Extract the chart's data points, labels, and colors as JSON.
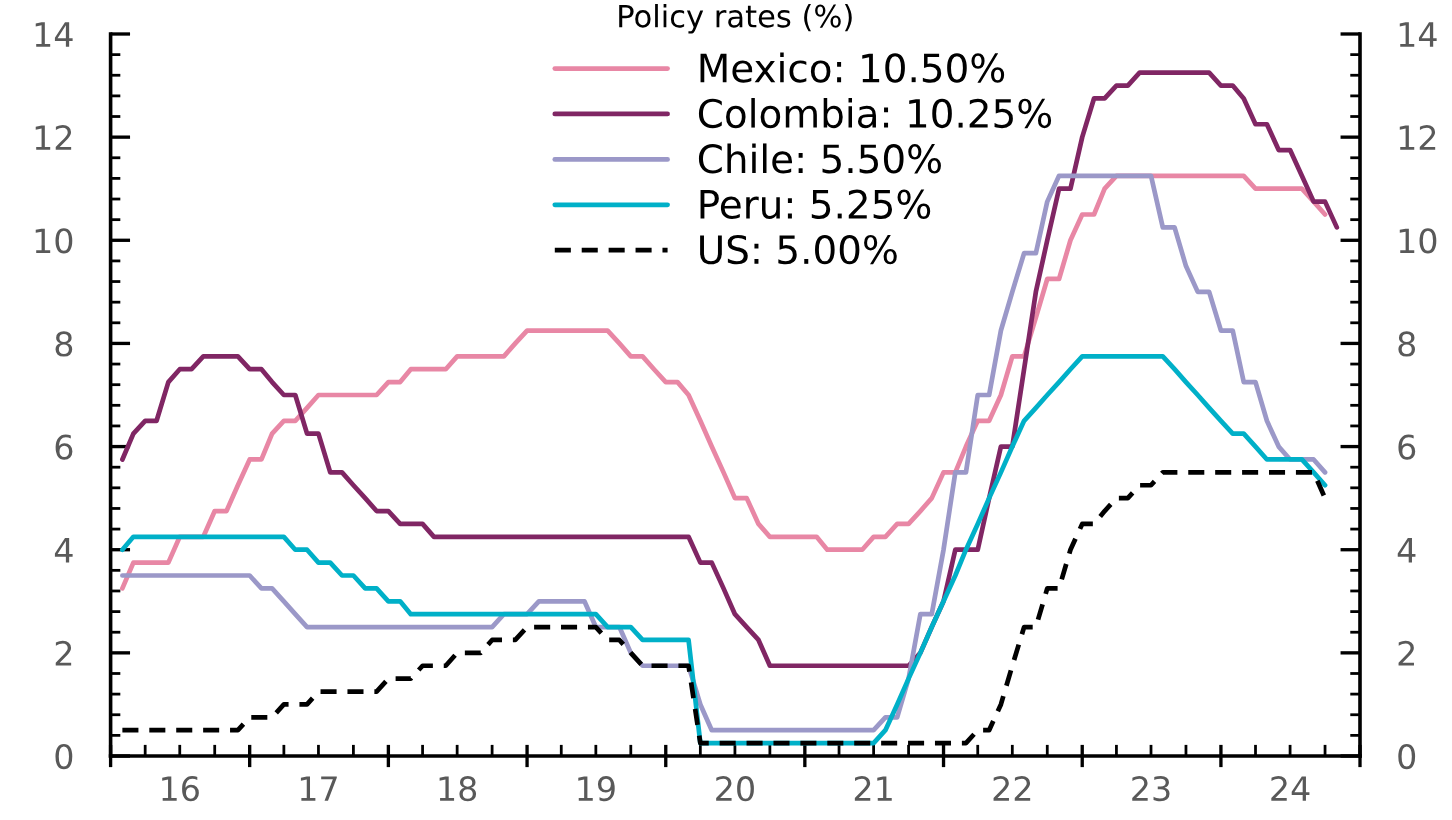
{
  "chart_data": {
    "type": "line",
    "title": "Policy rates (%)",
    "line_style": "solid",
    "legend": "top",
    "x": [
      "2016-02",
      "2016-03",
      "2016-04",
      "2016-05",
      "2016-06",
      "2016-07",
      "2016-08",
      "2016-09",
      "2016-10",
      "2016-11",
      "2016-12",
      "2017-01",
      "2017-02",
      "2017-03",
      "2017-04",
      "2017-05",
      "2017-06",
      "2017-07",
      "2017-08",
      "2017-09",
      "2017-10",
      "2017-11",
      "2017-12",
      "2018-01",
      "2018-02",
      "2018-03",
      "2018-04",
      "2018-05",
      "2018-06",
      "2018-07",
      "2018-08",
      "2018-09",
      "2018-10",
      "2018-11",
      "2018-12",
      "2019-01",
      "2019-02",
      "2019-03",
      "2019-04",
      "2019-05",
      "2019-06",
      "2019-07",
      "2019-08",
      "2019-09",
      "2019-10",
      "2019-11",
      "2019-12",
      "2020-01",
      "2020-02",
      "2020-03",
      "2020-04",
      "2020-05",
      "2020-06",
      "2020-07",
      "2020-08",
      "2020-09",
      "2020-10",
      "2020-11",
      "2020-12",
      "2021-01",
      "2021-02",
      "2021-03",
      "2021-04",
      "2021-05",
      "2021-06",
      "2021-07",
      "2021-08",
      "2021-09",
      "2021-10",
      "2021-11",
      "2021-12",
      "2022-01",
      "2022-02",
      "2022-03",
      "2022-04",
      "2022-05",
      "2022-06",
      "2022-07",
      "2022-08",
      "2022-09",
      "2022-10",
      "2022-11",
      "2022-12",
      "2023-01",
      "2023-02",
      "2023-03",
      "2023-04",
      "2023-05",
      "2023-06",
      "2023-07",
      "2023-08",
      "2023-09",
      "2023-10",
      "2023-11",
      "2023-12",
      "2024-01",
      "2024-02",
      "2024-03",
      "2024-04",
      "2024-05",
      "2024-06",
      "2024-07",
      "2024-08",
      "2024-09",
      "2024-10",
      "2024-11"
    ],
    "series": [
      {
        "name": "Mexico: 10.50%",
        "color": "#e887a5",
        "values": [
          3.25,
          3.75,
          3.75,
          3.75,
          3.75,
          4.25,
          4.25,
          4.25,
          4.75,
          4.75,
          5.25,
          5.75,
          5.75,
          6.25,
          6.5,
          6.5,
          6.75,
          7,
          7,
          7,
          7,
          7,
          7,
          7.25,
          7.25,
          7.5,
          7.5,
          7.5,
          7.5,
          7.75,
          7.75,
          7.75,
          7.75,
          7.75,
          8,
          8.25,
          8.25,
          8.25,
          8.25,
          8.25,
          8.25,
          8.25,
          8.25,
          8,
          7.75,
          7.75,
          7.5,
          7.25,
          7.25,
          7,
          6.5,
          6,
          5.5,
          5,
          5,
          4.5,
          4.25,
          4.25,
          4.25,
          4.25,
          4.25,
          4,
          4,
          4,
          4,
          4.25,
          4.25,
          4.5,
          4.5,
          4.75,
          5,
          5.5,
          5.5,
          6,
          6.5,
          6.5,
          7,
          7.75,
          7.75,
          8.5,
          9.25,
          9.25,
          10,
          10.5,
          10.5,
          11,
          11.25,
          11.25,
          11.25,
          11.25,
          11.25,
          11.25,
          11.25,
          11.25,
          11.25,
          11.25,
          11.25,
          11.25,
          11,
          11,
          11,
          11,
          11,
          10.75,
          10.5,
          null
        ]
      },
      {
        "name": "Colombia: 10.25%",
        "color": "#802664",
        "values": [
          5.75,
          6.25,
          6.5,
          6.5,
          7.25,
          7.5,
          7.5,
          7.75,
          7.75,
          7.75,
          7.75,
          7.5,
          7.5,
          7.25,
          7,
          7,
          6.25,
          6.25,
          5.5,
          5.5,
          5.25,
          5,
          4.75,
          4.75,
          4.5,
          4.5,
          4.5,
          4.25,
          4.25,
          4.25,
          4.25,
          4.25,
          4.25,
          4.25,
          4.25,
          4.25,
          4.25,
          4.25,
          4.25,
          4.25,
          4.25,
          4.25,
          4.25,
          4.25,
          4.25,
          4.25,
          4.25,
          4.25,
          4.25,
          4.25,
          3.75,
          3.75,
          3.25,
          2.75,
          2.5,
          2.25,
          1.75,
          1.75,
          1.75,
          1.75,
          1.75,
          1.75,
          1.75,
          1.75,
          1.75,
          1.75,
          1.75,
          1.75,
          1.75,
          2,
          2.5,
          3,
          4,
          4,
          4,
          5,
          6,
          6,
          7.5,
          9,
          10,
          11,
          11,
          12,
          12.75,
          12.75,
          13,
          13,
          13.25,
          13.25,
          13.25,
          13.25,
          13.25,
          13.25,
          13.25,
          13,
          13,
          12.75,
          12.25,
          12.25,
          11.75,
          11.75,
          11.25,
          10.75,
          10.75,
          10.25
        ]
      },
      {
        "name": "Chile: 5.50%",
        "color": "#9b98c8",
        "values": [
          3.5,
          3.5,
          3.5,
          3.5,
          3.5,
          3.5,
          3.5,
          3.5,
          3.5,
          3.5,
          3.5,
          3.5,
          3.25,
          3.25,
          3,
          2.75,
          2.5,
          2.5,
          2.5,
          2.5,
          2.5,
          2.5,
          2.5,
          2.5,
          2.5,
          2.5,
          2.5,
          2.5,
          2.5,
          2.5,
          2.5,
          2.5,
          2.5,
          2.75,
          2.75,
          2.75,
          3,
          3,
          3,
          3,
          3,
          2.5,
          2.5,
          2.5,
          2,
          1.75,
          1.75,
          1.75,
          1.75,
          1.75,
          1,
          0.5,
          0.5,
          0.5,
          0.5,
          0.5,
          0.5,
          0.5,
          0.5,
          0.5,
          0.5,
          0.5,
          0.5,
          0.5,
          0.5,
          0.5,
          0.75,
          0.75,
          1.5,
          2.75,
          2.75,
          4,
          5.5,
          5.5,
          7,
          7,
          8.25,
          9,
          9.75,
          9.75,
          10.75,
          11.25,
          11.25,
          11.25,
          11.25,
          11.25,
          11.25,
          11.25,
          11.25,
          11.25,
          10.25,
          10.25,
          9.5,
          9,
          9,
          8.25,
          8.25,
          7.25,
          7.25,
          6.5,
          6,
          5.75,
          5.75,
          5.75,
          5.5,
          null
        ]
      },
      {
        "name": "Peru: 5.25%",
        "color": "#00b0c8",
        "values": [
          4,
          4.25,
          4.25,
          4.25,
          4.25,
          4.25,
          4.25,
          4.25,
          4.25,
          4.25,
          4.25,
          4.25,
          4.25,
          4.25,
          4.25,
          4,
          4,
          3.75,
          3.75,
          3.5,
          3.5,
          3.25,
          3.25,
          3,
          3,
          2.75,
          2.75,
          2.75,
          2.75,
          2.75,
          2.75,
          2.75,
          2.75,
          2.75,
          2.75,
          2.75,
          2.75,
          2.75,
          2.75,
          2.75,
          2.75,
          2.75,
          2.5,
          2.5,
          2.5,
          2.25,
          2.25,
          2.25,
          2.25,
          2.25,
          0.25,
          0.25,
          0.25,
          0.25,
          0.25,
          0.25,
          0.25,
          0.25,
          0.25,
          0.25,
          0.25,
          0.25,
          0.25,
          0.25,
          0.25,
          0.25,
          0.5,
          1,
          1.5,
          2,
          2.5,
          3,
          3.5,
          4,
          4.5,
          5,
          5.5,
          6,
          6.5,
          6.75,
          7,
          7.25,
          7.5,
          7.75,
          7.75,
          7.75,
          7.75,
          7.75,
          7.75,
          7.75,
          7.75,
          7.5,
          7.25,
          7,
          6.75,
          6.5,
          6.25,
          6.25,
          6,
          5.75,
          5.75,
          5.75,
          5.75,
          5.5,
          5.25,
          null
        ]
      },
      {
        "name": "US: 5.00%",
        "color": "#000000",
        "line_style": "dashed",
        "values": [
          0.5,
          0.5,
          0.5,
          0.5,
          0.5,
          0.5,
          0.5,
          0.5,
          0.5,
          0.5,
          0.5,
          0.75,
          0.75,
          0.75,
          1,
          1,
          1,
          1.25,
          1.25,
          1.25,
          1.25,
          1.25,
          1.25,
          1.5,
          1.5,
          1.5,
          1.75,
          1.75,
          1.75,
          2,
          2,
          2,
          2.25,
          2.25,
          2.25,
          2.5,
          2.5,
          2.5,
          2.5,
          2.5,
          2.5,
          2.5,
          2.25,
          2.25,
          2,
          1.75,
          1.75,
          1.75,
          1.75,
          1.75,
          0.25,
          0.25,
          0.25,
          0.25,
          0.25,
          0.25,
          0.25,
          0.25,
          0.25,
          0.25,
          0.25,
          0.25,
          0.25,
          0.25,
          0.25,
          0.25,
          0.25,
          0.25,
          0.25,
          0.25,
          0.25,
          0.25,
          0.25,
          0.25,
          0.5,
          0.5,
          1,
          1.75,
          2.5,
          2.5,
          3.25,
          3.25,
          4,
          4.5,
          4.5,
          4.75,
          5,
          5,
          5.25,
          5.25,
          5.5,
          5.5,
          5.5,
          5.5,
          5.5,
          5.5,
          5.5,
          5.5,
          5.5,
          5.5,
          5.5,
          5.5,
          5.5,
          5.5,
          5,
          null
        ]
      }
    ],
    "xlim": [
      "2016-01",
      "2025-01"
    ],
    "xticks": [
      {
        "value": "2016-01",
        "label": null
      },
      {
        "value": "2016-04",
        "label": null
      },
      {
        "value": "2016-07",
        "label": "16"
      },
      {
        "value": "2016-10",
        "label": null
      },
      {
        "value": "2017-01",
        "label": null
      },
      {
        "value": "2017-04",
        "label": null
      },
      {
        "value": "2017-07",
        "label": "17"
      },
      {
        "value": "2017-10",
        "label": null
      },
      {
        "value": "2018-01",
        "label": null
      },
      {
        "value": "2018-04",
        "label": null
      },
      {
        "value": "2018-07",
        "label": "18"
      },
      {
        "value": "2018-10",
        "label": null
      },
      {
        "value": "2019-01",
        "label": null
      },
      {
        "value": "2019-04",
        "label": null
      },
      {
        "value": "2019-07",
        "label": "19"
      },
      {
        "value": "2019-10",
        "label": null
      },
      {
        "value": "2020-01",
        "label": null
      },
      {
        "value": "2020-04",
        "label": null
      },
      {
        "value": "2020-07",
        "label": "20"
      },
      {
        "value": "2020-10",
        "label": null
      },
      {
        "value": "2021-01",
        "label": null
      },
      {
        "value": "2021-04",
        "label": null
      },
      {
        "value": "2021-07",
        "label": "21"
      },
      {
        "value": "2021-10",
        "label": null
      },
      {
        "value": "2022-01",
        "label": null
      },
      {
        "value": "2022-04",
        "label": null
      },
      {
        "value": "2022-07",
        "label": "22"
      },
      {
        "value": "2022-10",
        "label": null
      },
      {
        "value": "2023-01",
        "label": null
      },
      {
        "value": "2023-04",
        "label": null
      },
      {
        "value": "2023-07",
        "label": "23"
      },
      {
        "value": "2023-10",
        "label": null
      },
      {
        "value": "2024-01",
        "label": null
      },
      {
        "value": "2024-04",
        "label": null
      },
      {
        "value": "2024-07",
        "label": "24"
      },
      {
        "value": "2024-10",
        "label": null
      },
      {
        "value": "2025-01",
        "label": null
      }
    ],
    "ylim": [
      0,
      14
    ],
    "yticks": [
      0,
      {
        "value": 0.4,
        "label": null
      },
      {
        "value": 0.8,
        "label": null
      },
      {
        "value": 1.2,
        "label": null
      },
      {
        "value": 1.6,
        "label": null
      },
      2,
      {
        "value": 2.4,
        "label": null
      },
      {
        "value": 2.8,
        "label": null
      },
      {
        "value": 3.2,
        "label": null
      },
      {
        "value": 3.6,
        "label": null
      },
      4,
      {
        "value": 4.4,
        "label": null
      },
      {
        "value": 4.8,
        "label": null
      },
      {
        "value": 5.2,
        "label": null
      },
      {
        "value": 5.6,
        "label": null
      },
      6,
      {
        "value": 6.4,
        "label": null
      },
      {
        "value": 6.8,
        "label": null
      },
      {
        "value": 7.2,
        "label": null
      },
      {
        "value": 7.6,
        "label": null
      },
      8,
      {
        "value": 8.4,
        "label": null
      },
      {
        "value": 8.8,
        "label": null
      },
      {
        "value": 9.2,
        "label": null
      },
      {
        "value": 9.6,
        "label": null
      },
      10,
      {
        "value": 10.4,
        "label": null
      },
      {
        "value": 10.8,
        "label": null
      },
      {
        "value": 11.2,
        "label": null
      },
      {
        "value": 11.6,
        "label": null
      },
      12,
      {
        "value": 12.4,
        "label": null
      },
      {
        "value": 12.8,
        "label": null
      },
      {
        "value": 13.2,
        "label": null
      },
      {
        "value": 13.6,
        "label": null
      },
      14
    ],
    "y2lim": [
      0,
      14
    ],
    "y2ticks": [
      0,
      {
        "value": 0.4,
        "label": null
      },
      {
        "value": 0.8,
        "label": null
      },
      {
        "value": 1.2,
        "label": null
      },
      {
        "value": 1.6,
        "label": null
      },
      2,
      {
        "value": 2.4,
        "label": null
      },
      {
        "value": 2.8,
        "label": null
      },
      {
        "value": 3.2,
        "label": null
      },
      {
        "value": 3.6,
        "label": null
      },
      4,
      {
        "value": 4.4,
        "label": null
      },
      {
        "value": 4.8,
        "label": null
      },
      {
        "value": 5.2,
        "label": null
      },
      {
        "value": 5.6,
        "label": null
      },
      6,
      {
        "value": 6.4,
        "label": null
      },
      {
        "value": 6.8,
        "label": null
      },
      {
        "value": 7.2,
        "label": null
      },
      {
        "value": 7.6,
        "label": null
      },
      8,
      {
        "value": 8.4,
        "label": null
      },
      {
        "value": 8.8,
        "label": null
      },
      {
        "value": 9.2,
        "label": null
      },
      {
        "value": 9.6,
        "label": null
      },
      10,
      {
        "value": 10.4,
        "label": null
      },
      {
        "value": 10.8,
        "label": null
      },
      {
        "value": 11.2,
        "label": null
      },
      {
        "value": 11.6,
        "label": null
      },
      12,
      {
        "value": 12.4,
        "label": null
      },
      {
        "value": 12.8,
        "label": null
      },
      {
        "value": 13.2,
        "label": null
      },
      {
        "value": 13.6,
        "label": null
      },
      14
    ]
  }
}
